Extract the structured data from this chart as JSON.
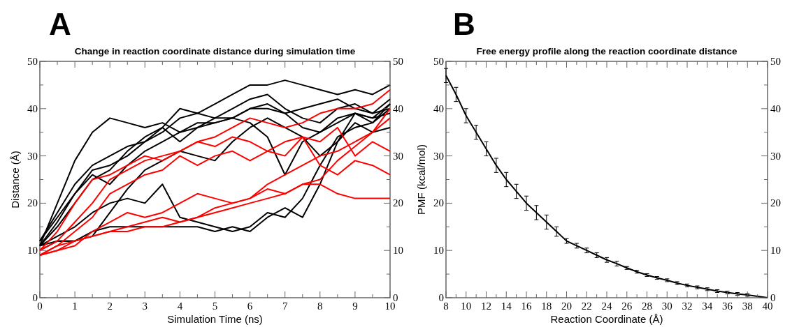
{
  "chart_data": [
    {
      "type": "line",
      "title": "Change in reaction coordinate distance during simulation time",
      "xlabel": "Simulation Time (ns)",
      "ylabel": "Distance (Å)",
      "annotations": [
        "A"
      ],
      "x": [
        0,
        0.5,
        1,
        1.5,
        2,
        2.5,
        3,
        3.5,
        4,
        4.5,
        5,
        5.5,
        6,
        6.5,
        7,
        7.5,
        8,
        8.5,
        9,
        9.5,
        10
      ],
      "series": [
        {
          "color": "#000000",
          "values": [
            11,
            20,
            29,
            35,
            38,
            37,
            36,
            37,
            35,
            36,
            38,
            38,
            40,
            40,
            39,
            40,
            41,
            42,
            40,
            39,
            42
          ]
        },
        {
          "color": "#000000",
          "values": [
            12,
            18,
            24,
            28,
            30,
            32,
            33,
            35,
            38,
            39,
            41,
            43,
            45,
            45,
            46,
            45,
            44,
            43,
            44,
            43,
            45
          ]
        },
        {
          "color": "#000000",
          "values": [
            11,
            16,
            22,
            27,
            28,
            30,
            33,
            36,
            40,
            39,
            38,
            40,
            42,
            43,
            40,
            38,
            37,
            40,
            41,
            39,
            40
          ]
        },
        {
          "color": "#000000",
          "values": [
            11,
            15,
            20,
            25,
            27,
            31,
            34,
            36,
            33,
            36,
            37,
            38,
            37,
            34,
            26,
            33,
            35,
            38,
            39,
            37,
            41
          ]
        },
        {
          "color": "#000000",
          "values": [
            11,
            13,
            15,
            18,
            20,
            21,
            20,
            24,
            17,
            16,
            15,
            14,
            15,
            18,
            17,
            21,
            28,
            34,
            36,
            37,
            40
          ]
        },
        {
          "color": "#000000",
          "values": [
            11,
            12,
            12,
            14,
            15,
            15,
            15,
            15,
            15,
            15,
            14,
            15,
            14,
            17,
            19,
            17,
            24,
            33,
            39,
            38,
            41
          ]
        },
        {
          "color": "#000000",
          "values": [
            10,
            12,
            12,
            13,
            18,
            23,
            27,
            29,
            31,
            30,
            29,
            33,
            36,
            38,
            36,
            34,
            30,
            33,
            37,
            35,
            36
          ]
        },
        {
          "color": "#000000",
          "values": [
            12,
            17,
            22,
            26,
            24,
            28,
            31,
            33,
            35,
            37,
            37,
            38,
            40,
            41,
            39,
            36,
            35,
            37,
            39,
            38,
            39
          ]
        },
        {
          "color": "#ff0000",
          "values": [
            10,
            14,
            20,
            25,
            26,
            28,
            30,
            29,
            31,
            33,
            34,
            36,
            38,
            37,
            36,
            37,
            39,
            40,
            40,
            41,
            44
          ]
        },
        {
          "color": "#ff0000",
          "values": [
            10,
            12,
            16,
            20,
            25,
            27,
            29,
            30,
            31,
            33,
            32,
            34,
            33,
            31,
            33,
            34,
            33,
            36,
            30,
            33,
            31
          ]
        },
        {
          "color": "#ff0000",
          "values": [
            9,
            11,
            14,
            17,
            22,
            24,
            26,
            27,
            30,
            28,
            30,
            31,
            29,
            31,
            30,
            34,
            28,
            26,
            29,
            28,
            26
          ]
        },
        {
          "color": "#ff0000",
          "values": [
            9,
            10,
            11,
            14,
            16,
            18,
            17,
            18,
            20,
            22,
            21,
            20,
            21,
            23,
            22,
            24,
            24,
            22,
            21,
            21,
            21
          ]
        },
        {
          "color": "#ff0000",
          "values": [
            9,
            11,
            12,
            13,
            14,
            15,
            16,
            17,
            16,
            17,
            19,
            20,
            21,
            24,
            26,
            28,
            30,
            31,
            33,
            35,
            38
          ]
        },
        {
          "color": "#ff0000",
          "values": [
            9,
            10,
            12,
            13,
            14,
            14,
            15,
            15,
            16,
            17,
            18,
            19,
            20,
            21,
            22,
            24,
            25,
            29,
            32,
            35,
            40
          ]
        }
      ],
      "xlim": [
        0,
        10
      ],
      "xticks": [
        0,
        {
          "value": 0.5,
          "label": null
        },
        1,
        {
          "value": 1.5,
          "label": null
        },
        2,
        {
          "value": 2.5,
          "label": null
        },
        3,
        {
          "value": 3.5,
          "label": null
        },
        4,
        {
          "value": 4.5,
          "label": null
        },
        5,
        {
          "value": 5.5,
          "label": null
        },
        6,
        {
          "value": 6.5,
          "label": null
        },
        7,
        {
          "value": 7.5,
          "label": null
        },
        8,
        {
          "value": 8.5,
          "label": null
        },
        9,
        {
          "value": 9.5,
          "label": null
        },
        10
      ],
      "ylim": [
        0,
        50
      ],
      "yticks": [
        0,
        {
          "value": 5,
          "label": null
        },
        10,
        {
          "value": 15,
          "label": null
        },
        20,
        {
          "value": 25,
          "label": null
        },
        30,
        {
          "value": 35,
          "label": null
        },
        40,
        {
          "value": 45,
          "label": null
        },
        50
      ],
      "y2lim": [
        0,
        50
      ],
      "y2ticks": [
        0,
        {
          "value": 5,
          "label": null
        },
        10,
        {
          "value": 15,
          "label": null
        },
        20,
        {
          "value": 25,
          "label": null
        },
        30,
        {
          "value": 35,
          "label": null
        },
        40,
        {
          "value": 45,
          "label": null
        },
        50
      ]
    },
    {
      "type": "line",
      "title": "Free energy profile along the reaction coordinate distance",
      "xlabel": "Reaction Coordinate (Å)",
      "ylabel": "PMF (kcal/mol)",
      "annotations": [
        "B"
      ],
      "x": [
        8,
        9,
        10,
        11,
        12,
        13,
        14,
        15,
        16,
        17,
        18,
        19,
        20,
        21,
        22,
        23,
        24,
        25,
        26,
        27,
        28,
        29,
        30,
        31,
        32,
        33,
        34,
        35,
        36,
        37,
        38,
        39,
        40
      ],
      "series": [
        {
          "color": "#000000",
          "values": [
            47,
            43,
            38.5,
            35,
            31.5,
            28,
            25,
            22.5,
            20,
            18,
            16,
            14,
            12,
            11,
            10,
            9,
            8,
            7.2,
            6.3,
            5.5,
            4.8,
            4.2,
            3.7,
            3.1,
            2.6,
            2.2,
            1.8,
            1.4,
            1.1,
            0.8,
            0.6,
            0.3,
            0
          ],
          "errors": [
            1.5,
            1.5,
            1.5,
            1.5,
            1.5,
            1.5,
            1.5,
            1.5,
            1.5,
            1.5,
            1.5,
            1,
            0.5,
            0.5,
            0.5,
            0.5,
            0.5,
            0.5,
            0.3,
            0.3,
            0.3,
            0.3,
            0.3,
            0.3,
            0.3,
            0.3,
            0.3,
            0.3,
            0.3,
            0.3,
            0.3,
            null,
            null
          ]
        }
      ],
      "xlim": [
        8,
        40
      ],
      "xticks": [
        8,
        {
          "value": 9,
          "label": null
        },
        10,
        {
          "value": 11,
          "label": null
        },
        12,
        {
          "value": 13,
          "label": null
        },
        14,
        {
          "value": 15,
          "label": null
        },
        16,
        {
          "value": 17,
          "label": null
        },
        18,
        {
          "value": 19,
          "label": null
        },
        20,
        {
          "value": 21,
          "label": null
        },
        22,
        {
          "value": 23,
          "label": null
        },
        24,
        {
          "value": 25,
          "label": null
        },
        26,
        {
          "value": 27,
          "label": null
        },
        28,
        {
          "value": 29,
          "label": null
        },
        30,
        {
          "value": 31,
          "label": null
        },
        32,
        {
          "value": 33,
          "label": null
        },
        34,
        {
          "value": 35,
          "label": null
        },
        36,
        {
          "value": 37,
          "label": null
        },
        38,
        {
          "value": 39,
          "label": null
        },
        40
      ],
      "ylim": [
        0,
        50
      ],
      "yticks": [
        0,
        {
          "value": 5,
          "label": null
        },
        10,
        {
          "value": 15,
          "label": null
        },
        20,
        {
          "value": 25,
          "label": null
        },
        30,
        {
          "value": 35,
          "label": null
        },
        40,
        {
          "value": 45,
          "label": null
        },
        50
      ],
      "y2lim": [
        0,
        50
      ],
      "y2ticks": [
        0,
        {
          "value": 5,
          "label": null
        },
        10,
        {
          "value": 15,
          "label": null
        },
        20,
        {
          "value": 25,
          "label": null
        },
        30,
        {
          "value": 35,
          "label": null
        },
        40,
        {
          "value": 45,
          "label": null
        },
        50
      ]
    }
  ]
}
